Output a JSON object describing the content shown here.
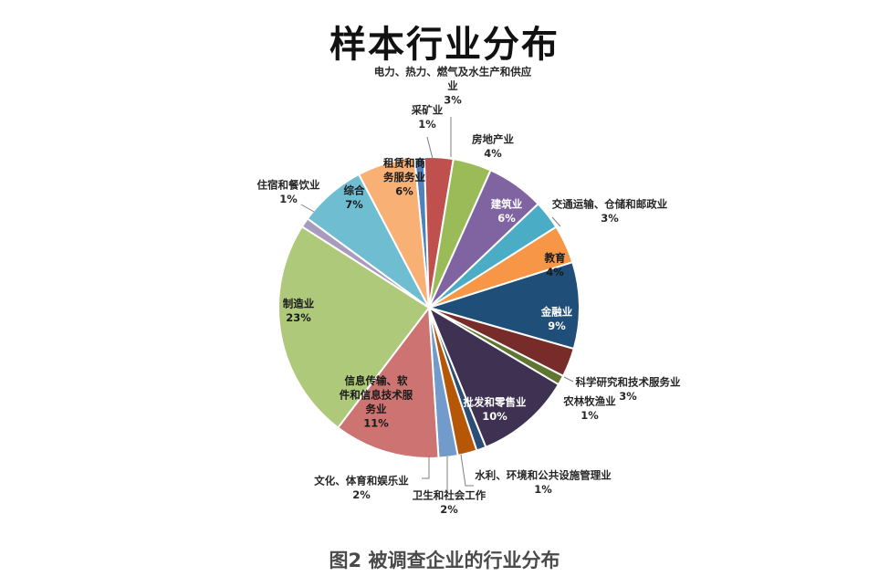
{
  "caption": "图2  被调查企业的行业分布",
  "chart_data": {
    "type": "pie",
    "title": "样本行业分布",
    "slices": [
      {
        "label": "采矿业",
        "value": 1,
        "value_label": "1%",
        "color": "#4F81BD"
      },
      {
        "label": "电力、热力、燃气及水生产和供应业",
        "value": 3,
        "value_label": "3%",
        "color": "#C0504D"
      },
      {
        "label": "房地产业",
        "value": 4,
        "value_label": "4%",
        "color": "#9BBB59"
      },
      {
        "label": "建筑业",
        "value": 6,
        "value_label": "6%",
        "color": "#8064A2"
      },
      {
        "label": "交通运输、仓储和邮政业",
        "value": 3,
        "value_label": "3%",
        "color": "#4BACC6"
      },
      {
        "label": "教育",
        "value": 4,
        "value_label": "4%",
        "color": "#F79646"
      },
      {
        "label": "金融业",
        "value": 9,
        "value_label": "9%",
        "color": "#1F4E79"
      },
      {
        "label": "科学研究和技术服务业",
        "value": 3,
        "value_label": "3%",
        "color": "#772C2A"
      },
      {
        "label": "农林牧渔业",
        "value": 1,
        "value_label": "1%",
        "color": "#5F7530"
      },
      {
        "label": "批发和零售业",
        "value": 10,
        "value_label": "10%",
        "color": "#3E3151"
      },
      {
        "label": "水利、环境和公共设施管理业",
        "value": 1,
        "value_label": "1%",
        "color": "#2C4D75"
      },
      {
        "label": "卫生和社会工作",
        "value": 2,
        "value_label": "2%",
        "color": "#B65708"
      },
      {
        "label": "文化、体育和娱乐业",
        "value": 2,
        "value_label": "2%",
        "color": "#729ACA"
      },
      {
        "label": "信息传输、软件和信息技术服务业",
        "value": 11,
        "value_label": "11%",
        "color": "#CD7371"
      },
      {
        "label": "制造业",
        "value": 23,
        "value_label": "23%",
        "color": "#AFC97A"
      },
      {
        "label": "住宿和餐饮业",
        "value": 1,
        "value_label": "1%",
        "color": "#A99BBD"
      },
      {
        "label": "综合",
        "value": 7,
        "value_label": "7%",
        "color": "#6FBDD1"
      },
      {
        "label": "租赁和商务服务业",
        "value": 6,
        "value_label": "6%",
        "color": "#F9B074"
      }
    ]
  }
}
